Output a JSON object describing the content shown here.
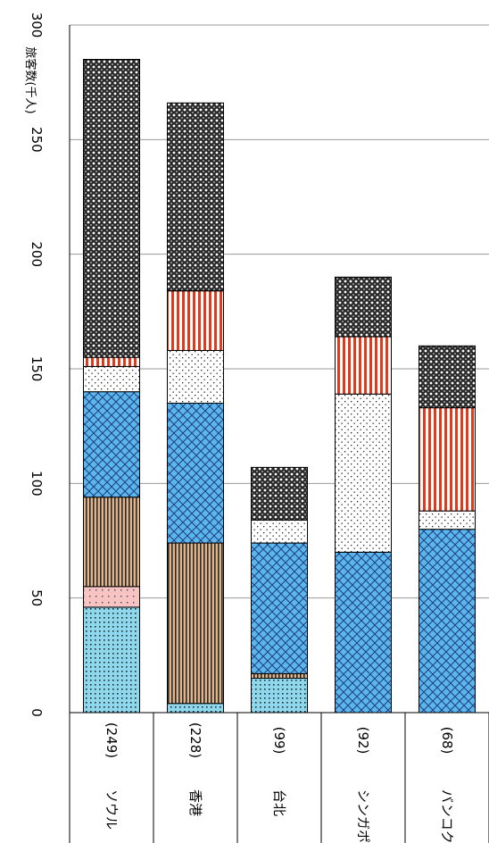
{
  "chart_data": {
    "type": "bar",
    "stacked": true,
    "orientation": "vertical (page rotated 90° clockwise)",
    "ylabel": "旅客数(千人)",
    "ylim": [
      0,
      300
    ],
    "yticks": [
      0,
      50,
      100,
      150,
      200,
      250,
      300
    ],
    "grid": true,
    "categories": [
      {
        "name": "ソウル",
        "count": "(249)"
      },
      {
        "name": "香港",
        "count": "(228)"
      },
      {
        "name": "台北",
        "count": "(99)"
      },
      {
        "name": "シンガポール",
        "count": "(92)"
      },
      {
        "name": "バンコク",
        "count": "(68)"
      }
    ],
    "series": [
      {
        "pattern": "cyan-dots",
        "values": [
          46,
          4,
          15,
          0,
          0
        ]
      },
      {
        "pattern": "pink-dots",
        "values": [
          9,
          0,
          0,
          0,
          0
        ]
      },
      {
        "pattern": "tan-stripes",
        "values": [
          39,
          70,
          2,
          0,
          0
        ]
      },
      {
        "pattern": "blue-lattice",
        "values": [
          46,
          61,
          57,
          70,
          80
        ]
      },
      {
        "pattern": "white-dots",
        "values": [
          11,
          23,
          10,
          69,
          8
        ]
      },
      {
        "pattern": "red-stripes",
        "values": [
          4,
          26,
          0,
          25,
          45
        ]
      },
      {
        "pattern": "black-lattice",
        "values": [
          130,
          82,
          23,
          26,
          27
        ]
      }
    ]
  }
}
